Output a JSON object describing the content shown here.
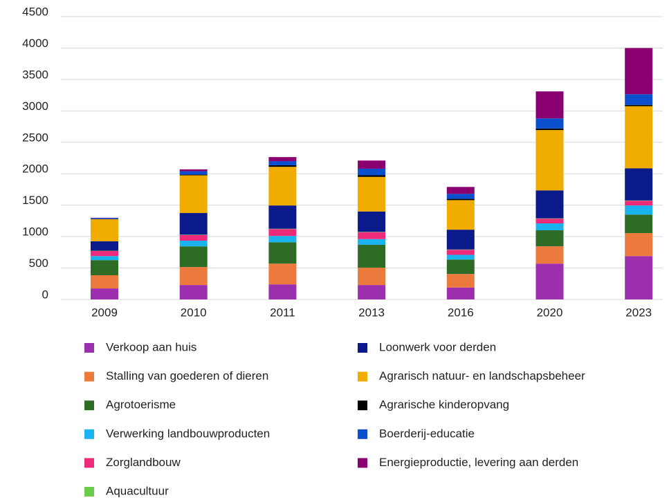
{
  "chart_data": {
    "type": "stacked_bar",
    "categories": [
      "2009",
      "2010",
      "2011",
      "2013",
      "2016",
      "2020",
      "2023"
    ],
    "series": [
      {
        "name": "Verkoop aan huis",
        "color": "#9c2fae",
        "values": [
          175,
          230,
          240,
          230,
          190,
          570,
          690
        ]
      },
      {
        "name": "Stalling van goederen of dieren",
        "color": "#ec7a3c",
        "values": [
          210,
          285,
          330,
          275,
          215,
          275,
          365
        ]
      },
      {
        "name": "Agrotoerisme",
        "color": "#2e6b25",
        "values": [
          240,
          330,
          340,
          365,
          230,
          255,
          295
        ]
      },
      {
        "name": "Verwerking landbouwproducten",
        "color": "#1ab3f0",
        "values": [
          65,
          90,
          100,
          90,
          75,
          110,
          145
        ]
      },
      {
        "name": "Zorglandbouw",
        "color": "#ee2a7b",
        "values": [
          80,
          90,
          110,
          110,
          80,
          75,
          75
        ]
      },
      {
        "name": "Aquacultuur",
        "color": "#6ccb4a",
        "values": [
          5,
          5,
          5,
          5,
          5,
          5,
          5
        ]
      },
      {
        "name": "Loonwerk voor derden",
        "color": "#0a1a8a",
        "values": [
          150,
          345,
          370,
          325,
          315,
          445,
          510
        ]
      },
      {
        "name": "Agrarisch natuur- en landschapsbeheer",
        "color": "#f0ad00",
        "values": [
          350,
          600,
          615,
          550,
          470,
          960,
          990
        ]
      },
      {
        "name": "Agrarische kinderopvang",
        "color": "#000000",
        "values": [
          5,
          10,
          25,
          25,
          20,
          25,
          20
        ]
      },
      {
        "name": "Boerderij-educatie",
        "color": "#0b4fce",
        "values": [
          15,
          55,
          65,
          105,
          80,
          160,
          170
        ]
      },
      {
        "name": "Energieproductie, levering aan derden",
        "color": "#8a0070",
        "values": [
          5,
          30,
          65,
          130,
          110,
          430,
          735
        ]
      }
    ],
    "ylim": [
      0,
      4500
    ],
    "yticks": [
      0,
      500,
      1000,
      1500,
      2000,
      2500,
      3000,
      3500,
      4000,
      4500
    ],
    "grid": true
  }
}
